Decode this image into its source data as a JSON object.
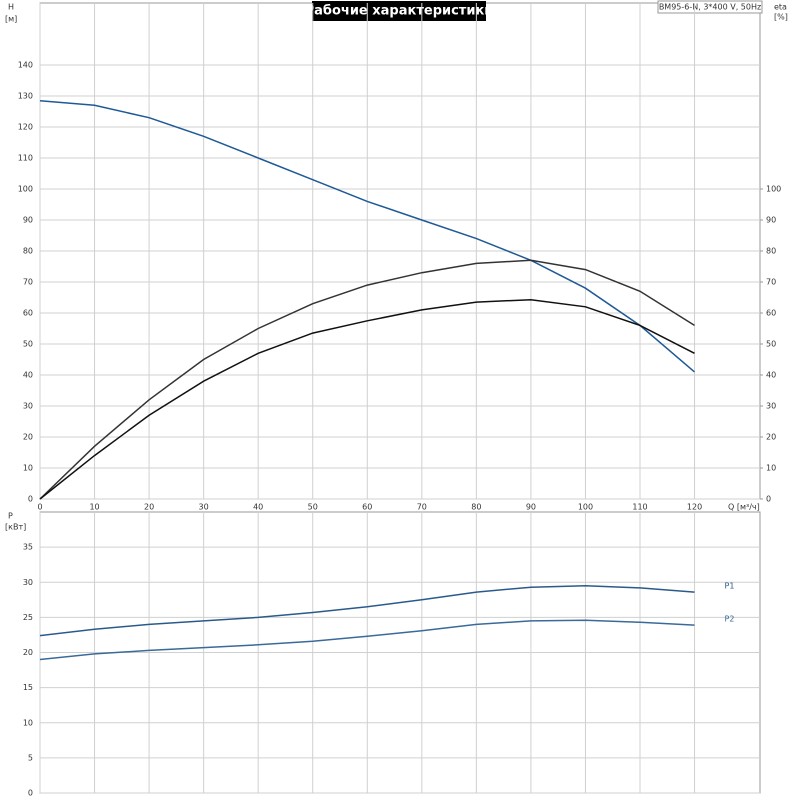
{
  "chart_data": [
    {
      "type": "line",
      "title": "Рабочие характеристики",
      "subtitle": "BM95-6-N, 3*400 V, 50Hz",
      "xlabel": "Q [м³/ч]",
      "ylabel": "H",
      "yunit": "[м]",
      "y2label": "eta",
      "y2unit": "[%]",
      "xlim": [
        0,
        132
      ],
      "ylim": [
        0,
        160
      ],
      "y2lim": [
        0,
        160
      ],
      "xticks": [
        0,
        10,
        20,
        30,
        40,
        50,
        60,
        70,
        80,
        90,
        100,
        110,
        120
      ],
      "yticks": [
        0,
        10,
        20,
        30,
        40,
        50,
        60,
        70,
        80,
        90,
        100,
        110,
        120,
        130,
        140
      ],
      "y2ticks": [
        0,
        10,
        20,
        30,
        40,
        50,
        60,
        70,
        80,
        90,
        100
      ],
      "grid": true,
      "x": [
        0,
        10,
        20,
        30,
        40,
        50,
        60,
        70,
        80,
        90,
        100,
        110,
        120
      ],
      "series": [
        {
          "color": "#1f5a96",
          "values": [
            128.5,
            127,
            123,
            117,
            110,
            103,
            96,
            90,
            84,
            77,
            68,
            56,
            41
          ]
        },
        {
          "color": "#333333",
          "axis": "y2",
          "values": [
            0,
            17,
            32,
            45,
            55,
            63,
            69,
            73,
            76,
            77,
            74,
            67,
            56
          ]
        },
        {
          "color": "#111111",
          "axis": "y2",
          "values": [
            0,
            14,
            27,
            38,
            47,
            53.5,
            57.5,
            61,
            63.5,
            64.3,
            62,
            56,
            47
          ]
        }
      ]
    },
    {
      "type": "line",
      "ylabel": "P",
      "yunit": "[кВт]",
      "xlim": [
        0,
        132
      ],
      "ylim": [
        0,
        40
      ],
      "xticks": [
        0,
        10,
        20,
        30,
        40,
        50,
        60,
        70,
        80,
        90,
        100,
        110,
        120
      ],
      "yticks": [
        0,
        5,
        10,
        15,
        20,
        25,
        30,
        35
      ],
      "grid": true,
      "x": [
        0,
        10,
        20,
        30,
        40,
        50,
        60,
        70,
        80,
        90,
        100,
        110,
        120
      ],
      "series": [
        {
          "name": "P1",
          "color": "#2a5a8c",
          "values": [
            22.4,
            23.3,
            24,
            24.5,
            25,
            25.7,
            26.5,
            27.5,
            28.6,
            29.3,
            29.5,
            29.2,
            28.6
          ]
        },
        {
          "name": "P2",
          "color": "#3a6a9a",
          "values": [
            19,
            19.8,
            20.3,
            20.7,
            21.1,
            21.6,
            22.3,
            23.1,
            24,
            24.5,
            24.6,
            24.3,
            23.9
          ]
        }
      ]
    }
  ]
}
